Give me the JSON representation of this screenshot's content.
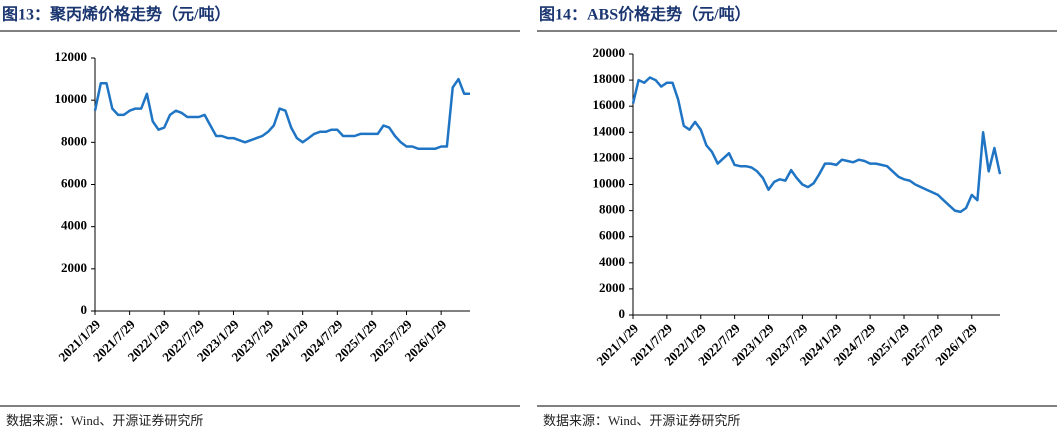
{
  "chart_data": [
    {
      "type": "line",
      "title": "图13：聚丙烯价格走势（元/吨）",
      "source": "数据来源：Wind、开源证券研究所",
      "color": "#1f75c4",
      "x": [
        "2021/1/29",
        "2021/2/28",
        "2021/3/29",
        "2021/4/29",
        "2021/5/29",
        "2021/6/29",
        "2021/7/29",
        "2021/8/29",
        "2021/9/29",
        "2021/10/29",
        "2021/11/29",
        "2021/12/29",
        "2022/1/29",
        "2022/2/28",
        "2022/3/29",
        "2022/4/29",
        "2022/5/29",
        "2022/6/29",
        "2022/7/29",
        "2022/8/29",
        "2022/9/29",
        "2022/10/29",
        "2022/11/29",
        "2022/12/29",
        "2023/1/29",
        "2023/2/28",
        "2023/3/29",
        "2023/4/29",
        "2023/5/29",
        "2023/6/29",
        "2023/7/29",
        "2023/8/29",
        "2023/9/29",
        "2023/10/29",
        "2023/11/29",
        "2023/12/29",
        "2024/1/29",
        "2024/2/29",
        "2024/3/29",
        "2024/4/29",
        "2024/5/29",
        "2024/6/29",
        "2024/7/29",
        "2024/8/29",
        "2024/9/29",
        "2024/10/29",
        "2024/11/29",
        "2024/12/29",
        "2025/1/29",
        "2025/2/28",
        "2025/3/29",
        "2025/4/29",
        "2025/5/29",
        "2025/6/29",
        "2025/7/29",
        "2025/8/29",
        "2025/9/29",
        "2025/10/29",
        "2025/11/29",
        "2025/12/29",
        "2026/1/29",
        "2026/2/28",
        "2026/3/29",
        "2026/4/29",
        "2026/5/29",
        "2026/6/29"
      ],
      "values": [
        9500,
        10800,
        10800,
        9600,
        9300,
        9300,
        9500,
        9600,
        9600,
        10300,
        9000,
        8600,
        8700,
        9300,
        9500,
        9400,
        9200,
        9200,
        9200,
        9300,
        8800,
        8300,
        8300,
        8200,
        8200,
        8100,
        8000,
        8100,
        8200,
        8300,
        8500,
        8800,
        9600,
        9500,
        8700,
        8200,
        8000,
        8200,
        8400,
        8500,
        8500,
        8600,
        8600,
        8300,
        8300,
        8300,
        8400,
        8400,
        8400,
        8400,
        8800,
        8700,
        8300,
        8000,
        7800,
        7800,
        7700,
        7700,
        7700,
        7700,
        7800,
        7800,
        10600,
        11000,
        10300,
        10300
      ],
      "xticks": [
        "2021/1/29",
        "2021/7/29",
        "2022/1/29",
        "2022/7/29",
        "2023/1/29",
        "2023/7/29",
        "2024/1/29",
        "2024/7/29",
        "2025/1/29",
        "2025/7/29",
        "2026/1/29"
      ],
      "ylim": [
        0,
        12000
      ],
      "yticks": [
        0,
        2000,
        4000,
        6000,
        8000,
        10000,
        12000
      ]
    },
    {
      "type": "line",
      "title": "图14：ABS价格走势（元/吨）",
      "source": "数据来源：Wind、开源证券研究所",
      "color": "#1f75c4",
      "x": [
        "2021/1/29",
        "2021/2/28",
        "2021/3/29",
        "2021/4/29",
        "2021/5/29",
        "2021/6/29",
        "2021/7/29",
        "2021/8/29",
        "2021/9/29",
        "2021/10/29",
        "2021/11/29",
        "2021/12/29",
        "2022/1/29",
        "2022/2/28",
        "2022/3/29",
        "2022/4/29",
        "2022/5/29",
        "2022/6/29",
        "2022/7/29",
        "2022/8/29",
        "2022/9/29",
        "2022/10/29",
        "2022/11/29",
        "2022/12/29",
        "2023/1/29",
        "2023/2/28",
        "2023/3/29",
        "2023/4/29",
        "2023/5/29",
        "2023/6/29",
        "2023/7/29",
        "2023/8/29",
        "2023/9/29",
        "2023/10/29",
        "2023/11/29",
        "2023/12/29",
        "2024/1/29",
        "2024/2/29",
        "2024/3/29",
        "2024/4/29",
        "2024/5/29",
        "2024/6/29",
        "2024/7/29",
        "2024/8/29",
        "2024/9/29",
        "2024/10/29",
        "2024/11/29",
        "2024/12/29",
        "2025/1/29",
        "2025/2/28",
        "2025/3/29",
        "2025/4/29",
        "2025/5/29",
        "2025/6/29",
        "2025/7/29",
        "2025/8/29",
        "2025/9/29",
        "2025/10/29",
        "2025/11/29",
        "2025/12/29",
        "2026/1/29",
        "2026/2/28",
        "2026/3/29",
        "2026/4/29",
        "2026/5/29",
        "2026/6/29"
      ],
      "values": [
        16200,
        18000,
        17800,
        18200,
        18000,
        17500,
        17800,
        17800,
        16500,
        14500,
        14200,
        14800,
        14200,
        13000,
        12500,
        11600,
        12000,
        12400,
        11500,
        11400,
        11400,
        11300,
        11000,
        10500,
        9600,
        10200,
        10400,
        10300,
        11100,
        10500,
        10000,
        9800,
        10100,
        10800,
        11600,
        11600,
        11500,
        11900,
        11800,
        11700,
        11900,
        11800,
        11600,
        11600,
        11500,
        11400,
        11000,
        10600,
        10400,
        10300,
        10000,
        9800,
        9600,
        9400,
        9200,
        8800,
        8400,
        8000,
        7900,
        8200,
        9200,
        8800,
        14000,
        11000,
        12800,
        10800
      ],
      "xticks": [
        "2021/1/29",
        "2021/7/29",
        "2022/1/29",
        "2022/7/29",
        "2023/1/29",
        "2023/7/29",
        "2024/1/29",
        "2024/7/29",
        "2025/1/29",
        "2025/7/29",
        "2026/1/29"
      ],
      "ylim": [
        0,
        20000
      ],
      "yticks": [
        0,
        2000,
        4000,
        6000,
        8000,
        10000,
        12000,
        14000,
        16000,
        18000,
        20000
      ]
    }
  ]
}
